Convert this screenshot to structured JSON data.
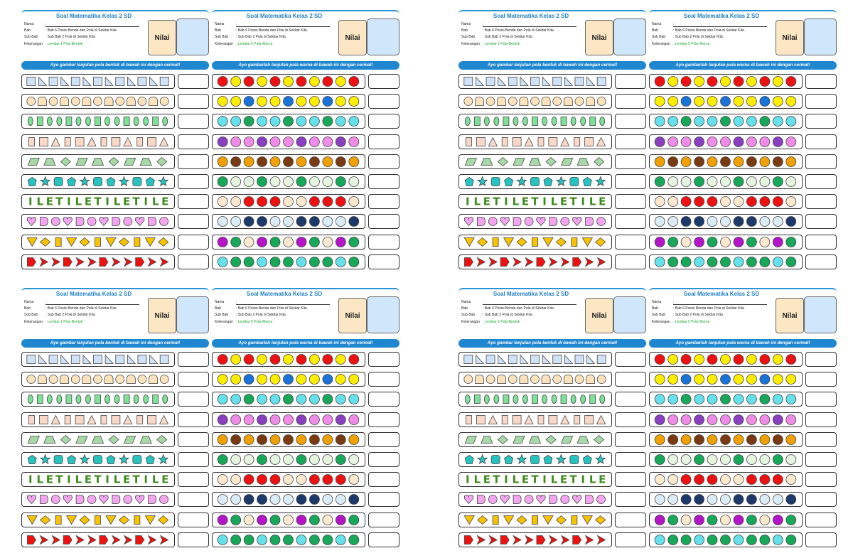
{
  "worksheet": {
    "title": "Soal Matematika Kelas 2 SD",
    "nilai_label": "Nilai",
    "fields": [
      {
        "label": "Nama",
        "value": ":"
      },
      {
        "label": "Bab",
        "value": ": Bab 6 Posisi Benda dan Pola di Sekitar Kita"
      },
      {
        "label": "Sub Bab",
        "value": ": Sub Bab 2 Pola di Sekitar Kita"
      },
      {
        "label": "Keterangan",
        "value_shape": ": Lembar 1 Pola Bentuk",
        "value_color": ": Lembar 5 Pola Warna"
      }
    ],
    "instruction_shape": "Ayo gambar lanjutan pola bentuk di bawah ini dengan cermat!",
    "instruction_color": "Ayo gambarlah lanjutan pola warna di bawah ini dengan cermat!"
  },
  "shape_rows": [
    {
      "pattern": "square,rtri,square,rtri,square,rtri,square,rtri,square,rtri,square,rtri,square",
      "fill": "#cfe2f7"
    },
    {
      "pattern": "circle,leaf,circle,leaf,circle,leaf,circle,leaf,circle,leaf,circle,leaf,circle",
      "fill": "#fde3bd"
    },
    {
      "pattern": "oval,rect,oval,oval,rect,oval,oval,rect,oval,oval,rect,oval,oval,rect,oval",
      "fill": "#7fe09a"
    },
    {
      "pattern": "tallrect,square,tri,tallrect,square,tri,tallrect,square,tri,tallrect,square,tri",
      "fill": "#f8d8c8"
    },
    {
      "pattern": "para,trap,diamond,para,trap,diamond,para,trap,diamond",
      "fill": "#a8d8a8"
    },
    {
      "pattern": "pent,star,rsquare,pent,star,rsquare,pent,star,rsquare,pent,star",
      "fill": "#27c3c0"
    },
    {
      "pattern": "I,L,E,T,I,L,E,T,I,L,E,T,I,L,E",
      "fill": "#3e8a1e"
    },
    {
      "pattern": "heart,tag,circle,heart,tag,circle,heart,tag,circle,heart,tag,circle",
      "fill": "#f3a6ef"
    },
    {
      "pattern": "invtri,diamond,tallrect,invtri,diamond,tallrect,invtri,diamond,tallrect,invtri,diamond",
      "fill": "#f7c200"
    },
    {
      "pattern": "house,arrow,arrow,house,arrow,arrow,house,arrow,arrow,house,arrow,arrow",
      "fill": "#ef1010"
    }
  ],
  "color_rows": [
    [
      "#ee1111",
      "#ffee00",
      "#ee1111",
      "#ffee00",
      "#ee1111",
      "#ffee00",
      "#ee1111",
      "#ffee00",
      "#ee1111",
      "#ffee00",
      "#ee1111"
    ],
    [
      "#ffee00",
      "#ffee00",
      "#1a73d8",
      "#ffee00",
      "#ffee00",
      "#1a73d8",
      "#ffee00",
      "#ffee00",
      "#1a73d8",
      "#ffee00",
      "#ffee00"
    ],
    [
      "#66e0ea",
      "#66e0ea",
      "#18a85a",
      "#66e0ea",
      "#66e0ea",
      "#18a85a",
      "#66e0ea",
      "#66e0ea",
      "#18a85a",
      "#66e0ea",
      "#66e0ea"
    ],
    [
      "#8a3fc0",
      "#f08ce8",
      "#f08ce8",
      "#8a3fc0",
      "#f08ce8",
      "#f08ce8",
      "#8a3fc0",
      "#f08ce8",
      "#f08ce8",
      "#8a3fc0",
      "#f08ce8"
    ],
    [
      "#f0a000",
      "#7a3a12",
      "#f0a000",
      "#7a3a12",
      "#f0a000",
      "#7a3a12",
      "#f0a000",
      "#7a3a12",
      "#f0a000",
      "#7a3a12",
      "#f0a000"
    ],
    [
      "#18a85a",
      "#e6f5e0",
      "#e6f5e0",
      "#18a85a",
      "#e6f5e0",
      "#e6f5e0",
      "#18a85a",
      "#e6f5e0",
      "#e6f5e0",
      "#18a85a",
      "#e6f5e0"
    ],
    [
      "#fbe8cf",
      "#fbe8cf",
      "#ee1111",
      "#ee1111",
      "#ee1111",
      "#fbe8cf",
      "#fbe8cf",
      "#ee1111",
      "#ee1111",
      "#ee1111",
      "#fbe8cf"
    ],
    [
      "#dcecf7",
      "#dcecf7",
      "#1d3a6a",
      "#1d3a6a",
      "#dcecf7",
      "#dcecf7",
      "#1d3a6a",
      "#1d3a6a",
      "#dcecf7",
      "#dcecf7",
      "#1d3a6a"
    ],
    [
      "#b515c8",
      "#18a85a",
      "#fbe8cf",
      "#b515c8",
      "#18a85a",
      "#fbe8cf",
      "#b515c8",
      "#18a85a",
      "#fbe8cf",
      "#b515c8",
      "#18a85a"
    ],
    [
      "#66e0ea",
      "#18a85a",
      "#18a85a",
      "#66e0ea",
      "#18a85a",
      "#18a85a",
      "#66e0ea",
      "#18a85a",
      "#18a85a",
      "#66e0ea",
      "#18a85a"
    ]
  ]
}
